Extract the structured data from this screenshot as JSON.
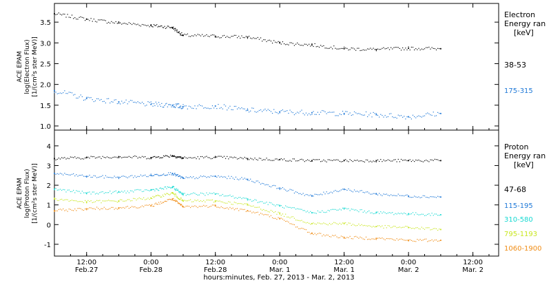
{
  "figure": {
    "xlabel": "hours:minutes, Feb. 27, 2013 - Mar. 2, 2013",
    "x_ticks": [
      {
        "line1": "12:00",
        "line2": "Feb.27"
      },
      {
        "line1": "0:00",
        "line2": "Feb.28"
      },
      {
        "line1": "12:00",
        "line2": "Feb.28"
      },
      {
        "line1": "0:00",
        "line2": "Mar. 1"
      },
      {
        "line1": "12:00",
        "line2": "Mar. 1"
      },
      {
        "line1": "0:00",
        "line2": "Mar. 2"
      },
      {
        "line1": "12:00",
        "line2": "Mar. 2"
      }
    ]
  },
  "chart_data": [
    {
      "type": "scatter",
      "panel": "electron",
      "ylabel_lines": [
        "ACE EPAM",
        "log(Electron Flux)",
        "[1/(cm²s ster MeV)]"
      ],
      "ylim": [
        0.9,
        3.95
      ],
      "y_ticks": [
        "1.0",
        "1.5",
        "2.0",
        "2.5",
        "3.0",
        "3.5"
      ],
      "legend_title": [
        "Electron",
        "Energy ran",
        "[keV]"
      ],
      "x": [
        "2013-02-27 06:00",
        "2013-02-27 12:00",
        "2013-02-27 18:00",
        "2013-02-28 00:00",
        "2013-02-28 04:00",
        "2013-02-28 06:00",
        "2013-02-28 12:00",
        "2013-02-28 18:00",
        "2013-03-01 00:00",
        "2013-03-01 06:00",
        "2013-03-01 12:00",
        "2013-03-01 18:00",
        "2013-03-02 00:00",
        "2013-03-02 06:00"
      ],
      "series": [
        {
          "name": "38-53",
          "color": "#000000",
          "values": [
            3.7,
            3.57,
            3.48,
            3.42,
            3.37,
            3.18,
            3.16,
            3.14,
            3.0,
            2.95,
            2.86,
            2.84,
            2.87,
            2.86
          ]
        },
        {
          "name": "175-315",
          "color": "#1e78d7",
          "values": [
            1.85,
            1.66,
            1.58,
            1.52,
            1.5,
            1.46,
            1.48,
            1.38,
            1.34,
            1.32,
            1.3,
            1.27,
            1.22,
            1.3
          ]
        }
      ]
    },
    {
      "type": "scatter",
      "panel": "proton",
      "ylabel_lines": [
        "ACE EPAM",
        "log(Proton Flux)",
        "[1/(cm²s ster MeV)]"
      ],
      "ylim": [
        -1.6,
        4.8
      ],
      "y_ticks": [
        "-1",
        "0",
        "1",
        "2",
        "3",
        "4"
      ],
      "legend_title": [
        "Proton",
        "Energy ran",
        "[keV]"
      ],
      "x": [
        "2013-02-27 06:00",
        "2013-02-27 12:00",
        "2013-02-27 18:00",
        "2013-02-28 00:00",
        "2013-02-28 04:00",
        "2013-02-28 06:00",
        "2013-02-28 12:00",
        "2013-02-28 18:00",
        "2013-03-01 00:00",
        "2013-03-01 06:00",
        "2013-03-01 12:00",
        "2013-03-01 18:00",
        "2013-03-02 00:00",
        "2013-03-02 06:00"
      ],
      "series": [
        {
          "name": "47-68",
          "color": "#000000",
          "values": [
            3.35,
            3.4,
            3.45,
            3.4,
            3.5,
            3.38,
            3.42,
            3.35,
            3.3,
            3.25,
            3.25,
            3.25,
            3.25,
            3.25
          ]
        },
        {
          "name": "115-195",
          "color": "#1e78d7",
          "values": [
            2.6,
            2.45,
            2.4,
            2.5,
            2.6,
            2.35,
            2.45,
            2.3,
            1.85,
            1.45,
            1.8,
            1.55,
            1.45,
            1.4
          ]
        },
        {
          "name": "310-580",
          "color": "#16d9d2",
          "values": [
            1.8,
            1.6,
            1.65,
            1.75,
            1.9,
            1.55,
            1.55,
            1.3,
            0.95,
            0.6,
            0.8,
            0.6,
            0.55,
            0.5
          ]
        },
        {
          "name": "795-1193",
          "color": "#c8e61e",
          "values": [
            1.3,
            1.15,
            1.2,
            1.35,
            1.6,
            1.2,
            1.2,
            1.0,
            0.55,
            0.05,
            0.05,
            -0.1,
            -0.15,
            -0.25
          ]
        },
        {
          "name": "1060-1900",
          "color": "#f08c14",
          "values": [
            0.7,
            0.8,
            0.85,
            0.95,
            1.3,
            0.9,
            0.95,
            0.7,
            0.3,
            -0.45,
            -0.65,
            -0.7,
            -0.8,
            -0.8
          ]
        }
      ]
    }
  ]
}
